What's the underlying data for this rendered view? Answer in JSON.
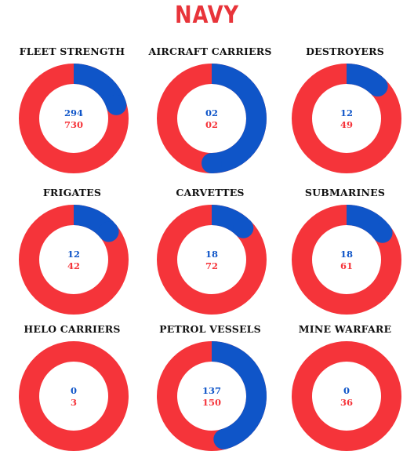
{
  "title": "NAVY",
  "colors": {
    "title": "#e8343a",
    "blue": "#0f55c8",
    "red": "#f5343a"
  },
  "chart_data": [
    {
      "type": "pie",
      "title": "FLEET STRENGTH",
      "values": [
        294,
        730
      ]
    },
    {
      "type": "pie",
      "title": "AIRCRAFT CARRIERS",
      "values": [
        "02",
        "02"
      ]
    },
    {
      "type": "pie",
      "title": "DESTROYERS",
      "values": [
        12,
        49
      ]
    },
    {
      "type": "pie",
      "title": "FRIGATES",
      "values": [
        12,
        42
      ]
    },
    {
      "type": "pie",
      "title": "CARVETTES",
      "values": [
        18,
        72
      ]
    },
    {
      "type": "pie",
      "title": "SUBMARINES",
      "values": [
        18,
        61
      ]
    },
    {
      "type": "pie",
      "title": "HELO CARRIERS",
      "values": [
        0,
        3
      ]
    },
    {
      "type": "pie",
      "title": "PETROL VESSELS",
      "values": [
        137,
        150
      ]
    },
    {
      "type": "pie",
      "title": "MINE WARFARE",
      "values": [
        0,
        36
      ]
    }
  ]
}
